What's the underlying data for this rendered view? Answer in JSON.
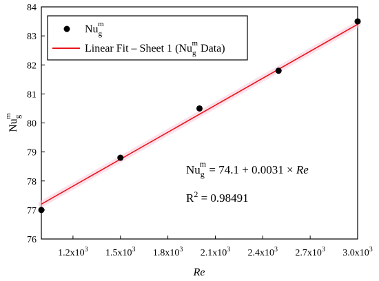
{
  "chart_data": {
    "type": "scatter",
    "xlabel": "Re",
    "ylabel": {
      "base": "Nu",
      "sub": "g",
      "sup": "m"
    },
    "xlim": [
      1000,
      3000
    ],
    "ylim": [
      76,
      84
    ],
    "x_ticks": [
      {
        "value": 1200,
        "mant": "1.2x10",
        "exp": "3"
      },
      {
        "value": 1500,
        "mant": "1.5x10",
        "exp": "3"
      },
      {
        "value": 1800,
        "mant": "1.8x10",
        "exp": "3"
      },
      {
        "value": 2100,
        "mant": "2.1x10",
        "exp": "3"
      },
      {
        "value": 2400,
        "mant": "2.4x10",
        "exp": "3"
      },
      {
        "value": 2700,
        "mant": "2.7x10",
        "exp": "3"
      },
      {
        "value": 3000,
        "mant": "3.0x10",
        "exp": "3"
      }
    ],
    "y_ticks": [
      76,
      77,
      78,
      79,
      80,
      81,
      82,
      83,
      84
    ],
    "series": [
      {
        "name": "Nu_g^m",
        "points": [
          {
            "x": 1000,
            "y": 77.0
          },
          {
            "x": 1500,
            "y": 78.8
          },
          {
            "x": 2000,
            "y": 80.5
          },
          {
            "x": 2500,
            "y": 81.8
          },
          {
            "x": 3000,
            "y": 83.5
          }
        ],
        "color": "#000000"
      }
    ],
    "fit": {
      "name": "Linear Fit – Sheet 1 (Nu_g^m Data)",
      "intercept": 74.1,
      "slope": 0.0031,
      "x_range": [
        1000,
        3000
      ],
      "y_range": [
        77.2,
        83.4
      ],
      "color": "#e8141a"
    },
    "legend": {
      "placement": "top-left",
      "item1": {
        "base": "Nu",
        "sub": "g",
        "sup": "m"
      },
      "item2": {
        "prefix": "Linear Fit – Sheet 1 (Nu",
        "sub": "g",
        "sup": "m",
        "suffix": " Data)"
      }
    },
    "annotations": {
      "equation": {
        "lhs_base": "Nu",
        "lhs_sub": "g",
        "lhs_sup": "m",
        "rhs": " = 74.1 + 0.0031 × ",
        "var": "Re"
      },
      "r2": {
        "base": "R",
        "sup": "2",
        "rest": " = 0.98491"
      }
    },
    "grid": false
  }
}
